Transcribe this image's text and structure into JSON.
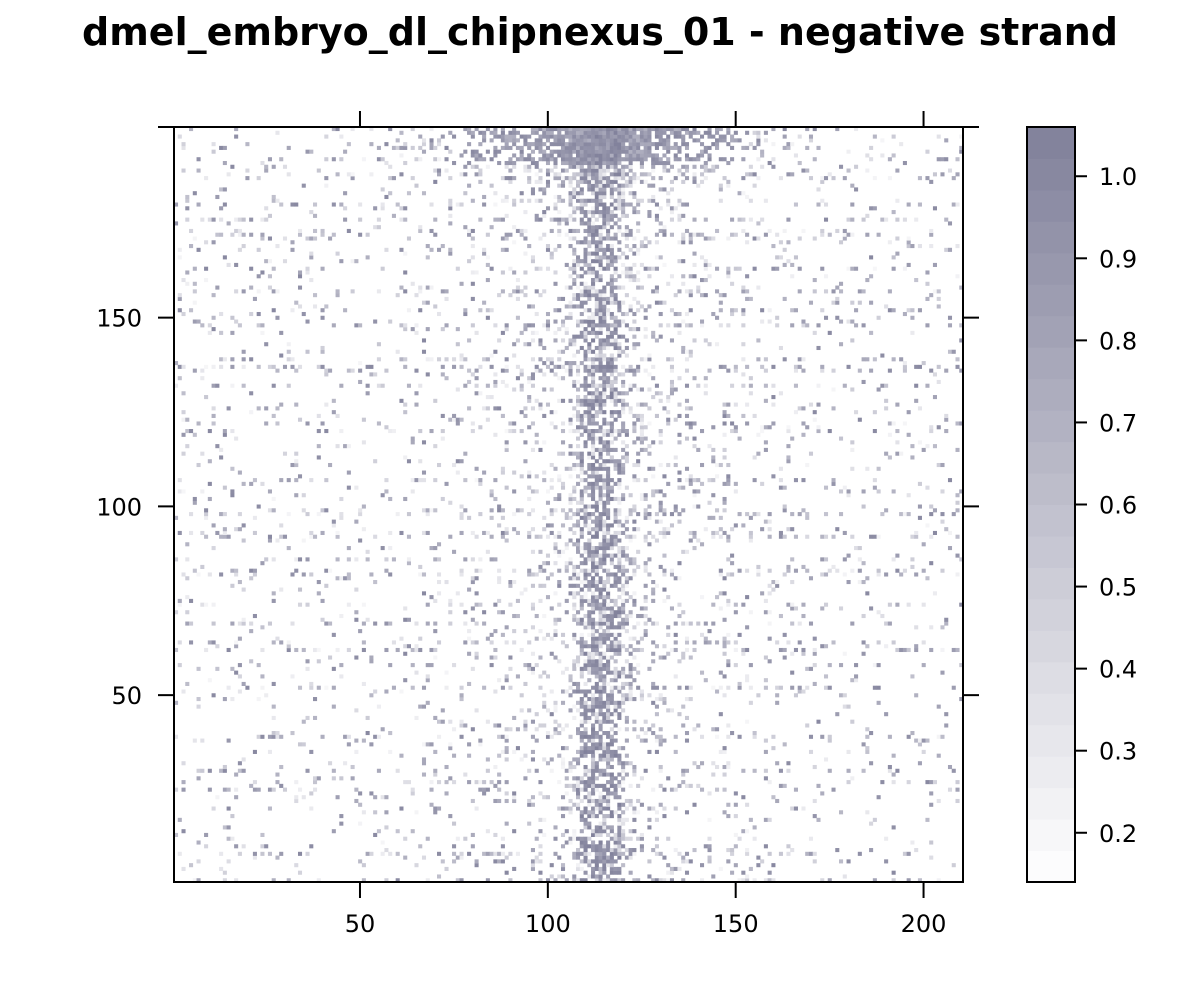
{
  "chart_data": {
    "type": "heatmap",
    "title": "dmel_embryo_dl_chipnexus_01 - negative strand",
    "xlabel": "",
    "ylabel": "",
    "xlim": [
      1,
      210
    ],
    "ylim": [
      1,
      200
    ],
    "x_ticks": [
      50,
      100,
      150,
      200
    ],
    "y_ticks": [
      50,
      100,
      150
    ],
    "colorbar": {
      "range": [
        0.14,
        1.06
      ],
      "ticks": [
        0.2,
        0.3,
        0.4,
        0.5,
        0.6,
        0.7,
        0.8,
        0.9,
        1.0
      ],
      "tick_labels": [
        "0.2",
        "0.3",
        "0.4",
        "0.5",
        "0.6",
        "0.7",
        "0.8",
        "0.9",
        "1.0"
      ],
      "color_low": "#ffffff",
      "color_high": "#80809a"
    },
    "pattern": {
      "description_free": true,
      "center_column": 114,
      "dense_top_rows": [
        185,
        200
      ],
      "peak_value": 1.0,
      "background_value": 0.15
    }
  }
}
